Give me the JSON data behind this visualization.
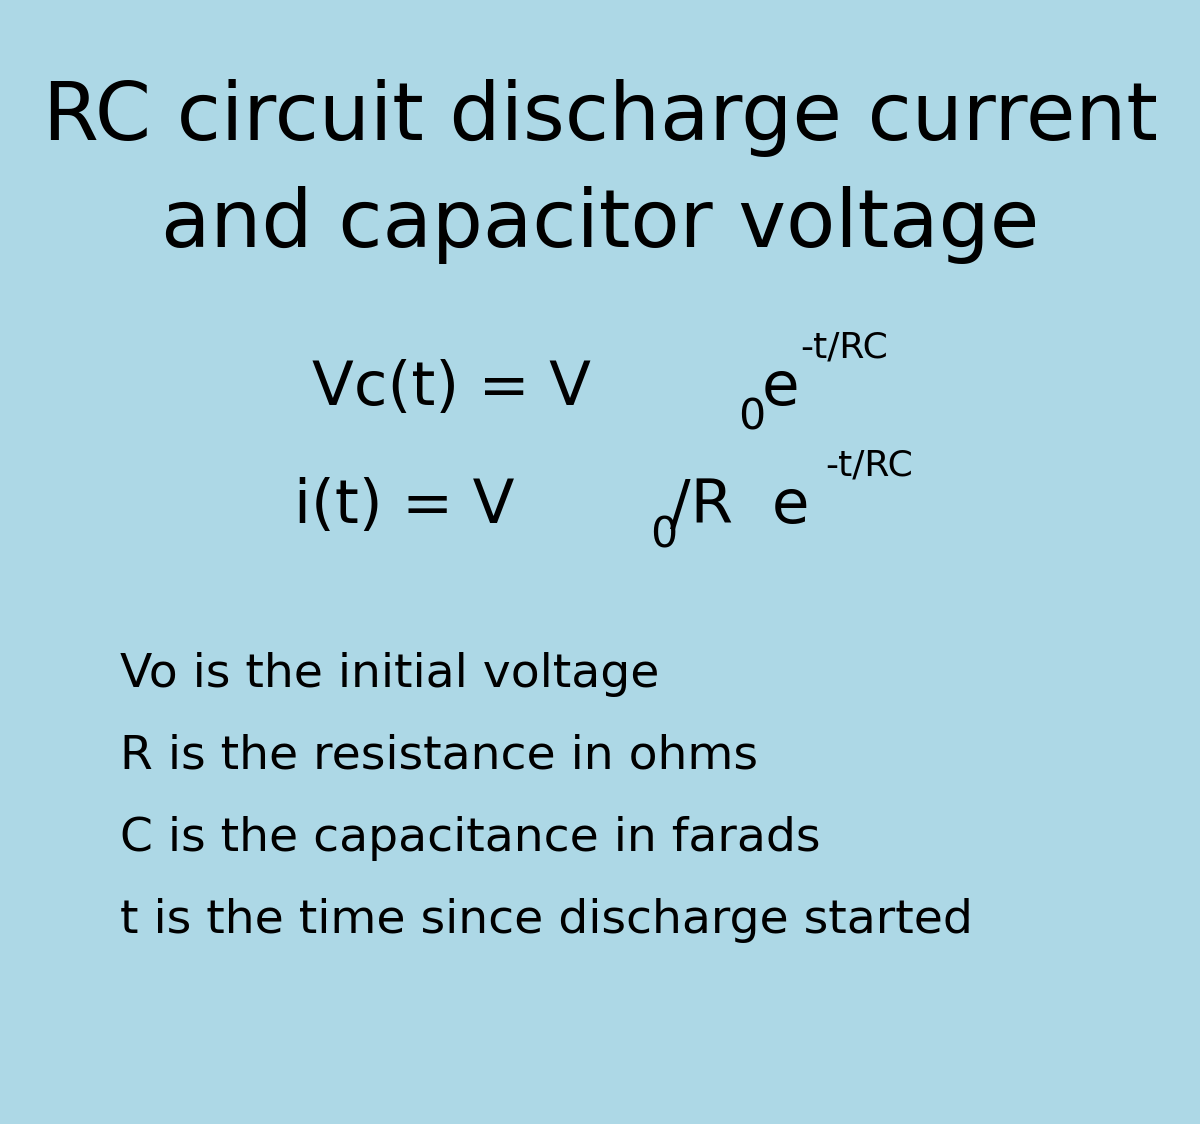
{
  "bg_color": "#ADD8E6",
  "text_color": "#000000",
  "title_line1": "RC circuit discharge current",
  "title_line2": "and capacitor voltage",
  "title_fontsize": 58,
  "formula_fontsize": 44,
  "superscript_fontsize": 26,
  "desc_fontsize": 34,
  "desc_lines": [
    "Vo is the initial voltage",
    "R is the resistance in ohms",
    "C is the capacitance in farads",
    "t is the time since discharge started"
  ],
  "fig_width": 12.0,
  "fig_height": 11.24
}
